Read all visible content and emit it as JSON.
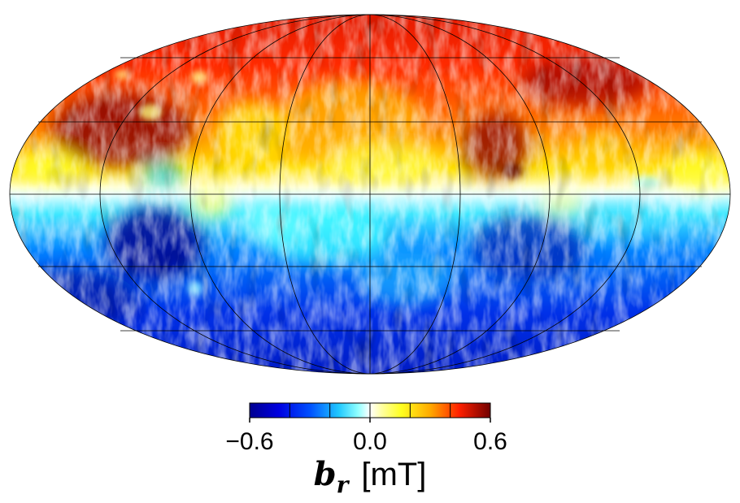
{
  "map": {
    "projection": "mollweide",
    "field": "radial magnetic field",
    "description_regions": {
      "north": "predominantly positive (yellow-red-dark red)",
      "south": "predominantly negative (cyan-blue-dark blue)",
      "equator": "near zero (white)"
    }
  },
  "colorbar": {
    "ticks": [
      "−0.6",
      "0.0",
      "0.6"
    ],
    "range": [
      -0.6,
      0.6
    ],
    "colors": [
      "#00008f",
      "#0033ff",
      "#0099ff",
      "#33ffff",
      "#ffffff",
      "#ffff33",
      "#ffaa00",
      "#ff3300",
      "#b30000",
      "#700000"
    ],
    "segments": 6,
    "title_symbol": "b",
    "title_subscript": "r",
    "title_unit": "[mT]"
  }
}
